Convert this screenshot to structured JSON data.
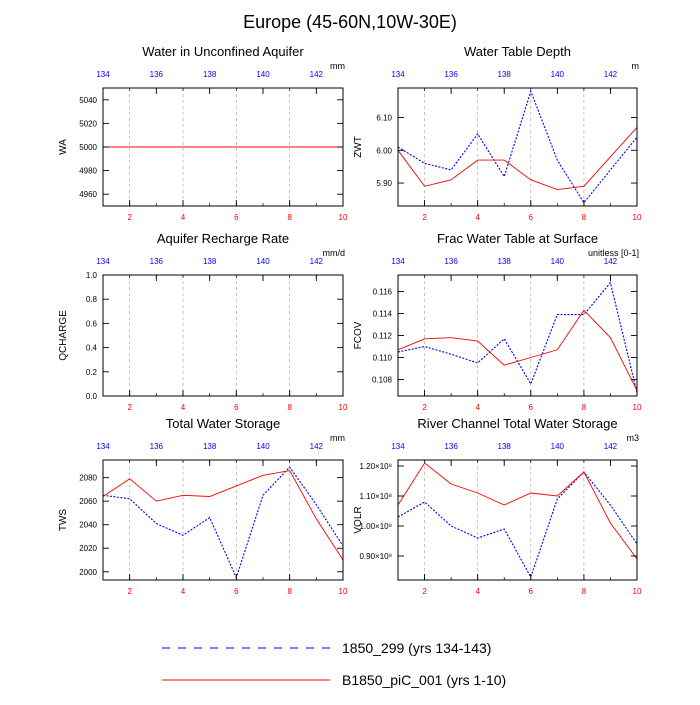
{
  "page": {
    "title": "Europe (45-60N,10W-30E)"
  },
  "colors": {
    "series_1850": "#0000ff",
    "series_b1850": "#ff0000",
    "axis": "#000000",
    "grid": "#aaaaaa"
  },
  "legend": [
    {
      "label": "1850_299 (yrs 134-143)",
      "style": "dashed",
      "color": "#0000ff"
    },
    {
      "label": "B1850_piC_001 (yrs 1-10)",
      "style": "solid",
      "color": "#ff0000"
    }
  ],
  "chart_data": [
    {
      "type": "line",
      "title": "Water in Unconfined Aquifer",
      "ylabel": "WA",
      "units": "mm",
      "x": [
        1,
        2,
        3,
        4,
        5,
        6,
        7,
        8,
        9,
        10
      ],
      "xlim": [
        1,
        10
      ],
      "xticks_bottom": [
        "2",
        "4",
        "6",
        "8",
        "10"
      ],
      "xticks_top": [
        "134",
        "136",
        "138",
        "140",
        "142"
      ],
      "ylim": [
        4950,
        5050
      ],
      "yticks": [
        "4960",
        "4980",
        "5000",
        "5020",
        "5040"
      ],
      "grid": "vertical dashed",
      "series": [
        {
          "name": "1850_299 (yrs 134-143)",
          "values": [
            5000,
            5000,
            5000,
            5000,
            5000,
            5000,
            5000,
            5000,
            5000,
            5000
          ]
        },
        {
          "name": "B1850_piC_001 (yrs 1-10)",
          "values": [
            5000,
            5000,
            5000,
            5000,
            5000,
            5000,
            5000,
            5000,
            5000,
            5000
          ]
        }
      ]
    },
    {
      "type": "line",
      "title": "Water Table Depth",
      "ylabel": "ZWT",
      "units": "m",
      "x": [
        1,
        2,
        3,
        4,
        5,
        6,
        7,
        8,
        9,
        10
      ],
      "xlim": [
        1,
        10
      ],
      "xticks_bottom": [
        "2",
        "4",
        "6",
        "8",
        "10"
      ],
      "xticks_top": [
        "134",
        "136",
        "138",
        "140",
        "142"
      ],
      "ylim": [
        5.83,
        6.19
      ],
      "yticks": [
        "5.90",
        "6.00",
        "6.10"
      ],
      "grid": "vertical dashed",
      "series": [
        {
          "name": "1850_299 (yrs 134-143)",
          "values": [
            6.01,
            5.96,
            5.94,
            6.05,
            5.92,
            6.18,
            5.97,
            5.84,
            5.94,
            6.04
          ]
        },
        {
          "name": "B1850_piC_001 (yrs 1-10)",
          "values": [
            6.0,
            5.89,
            5.91,
            5.97,
            5.97,
            5.91,
            5.88,
            5.89,
            5.98,
            6.07
          ]
        }
      ]
    },
    {
      "type": "line",
      "title": "Aquifer Recharge Rate",
      "ylabel": "QCHARGE",
      "units": "mm/d",
      "x": [
        1,
        2,
        3,
        4,
        5,
        6,
        7,
        8,
        9,
        10
      ],
      "xlim": [
        1,
        10
      ],
      "xticks_bottom": [
        "2",
        "4",
        "6",
        "8",
        "10"
      ],
      "xticks_top": [
        "134",
        "136",
        "138",
        "140",
        "142"
      ],
      "ylim": [
        0,
        1
      ],
      "yticks": [
        "0.0",
        "0.2",
        "0.4",
        "0.6",
        "0.8",
        "1.0"
      ],
      "grid": "vertical dashed",
      "series": []
    },
    {
      "type": "line",
      "title": "Frac Water Table at Surface",
      "ylabel": "FCOV",
      "units": "unitless [0-1]",
      "x": [
        1,
        2,
        3,
        4,
        5,
        6,
        7,
        8,
        9,
        10
      ],
      "xlim": [
        1,
        10
      ],
      "xticks_bottom": [
        "2",
        "4",
        "6",
        "8",
        "10"
      ],
      "xticks_top": [
        "134",
        "136",
        "138",
        "140",
        "142"
      ],
      "ylim": [
        0.1065,
        0.1175
      ],
      "yticks": [
        "0.108",
        "0.110",
        "0.112",
        "0.114",
        "0.116"
      ],
      "grid": "vertical dashed",
      "series": [
        {
          "name": "1850_299 (yrs 134-143)",
          "values": [
            0.1105,
            0.111,
            0.1103,
            0.1095,
            0.1117,
            0.1076,
            0.1139,
            0.1139,
            0.1168,
            0.1068
          ]
        },
        {
          "name": "B1850_piC_001 (yrs 1-10)",
          "values": [
            0.1107,
            0.1117,
            0.1118,
            0.1115,
            0.1093,
            0.11,
            0.1107,
            0.1143,
            0.1118,
            0.107
          ]
        }
      ]
    },
    {
      "type": "line",
      "title": "Total Water Storage",
      "ylabel": "TWS",
      "units": "mm",
      "x": [
        1,
        2,
        3,
        4,
        5,
        6,
        7,
        8,
        9,
        10
      ],
      "xlim": [
        1,
        10
      ],
      "xticks_bottom": [
        "2",
        "4",
        "6",
        "8",
        "10"
      ],
      "xticks_top": [
        "134",
        "136",
        "138",
        "140",
        "142"
      ],
      "ylim": [
        1993,
        2095
      ],
      "yticks": [
        "2000",
        "2020",
        "2040",
        "2060",
        "2080"
      ],
      "grid": "vertical dashed",
      "series": [
        {
          "name": "1850_299 (yrs 134-143)",
          "values": [
            2065,
            2062,
            2041,
            2031,
            2046,
            1995,
            2065,
            2089,
            2057,
            2022
          ]
        },
        {
          "name": "B1850_piC_001 (yrs 1-10)",
          "values": [
            2064,
            2079,
            2060,
            2065,
            2064,
            2073,
            2082,
            2086,
            2045,
            2010
          ]
        }
      ]
    },
    {
      "type": "line",
      "title": "River Channel Total Water Storage",
      "ylabel": "VOLR",
      "units": "m3",
      "x": [
        1,
        2,
        3,
        4,
        5,
        6,
        7,
        8,
        9,
        10
      ],
      "xlim": [
        1,
        10
      ],
      "xticks_bottom": [
        "2",
        "4",
        "6",
        "8",
        "10"
      ],
      "xticks_top": [
        "134",
        "136",
        "138",
        "140",
        "142"
      ],
      "ylim": [
        0.82,
        1.22
      ],
      "yticks": [
        "0.90×10⁸",
        "1.00×10⁸",
        "1.10×10⁸",
        "1.20×10⁸"
      ],
      "y_scale_note": "values ×10⁸",
      "grid": "vertical dashed",
      "series": [
        {
          "name": "1850_299 (yrs 134-143)",
          "values": [
            1.03,
            1.08,
            1.0,
            0.96,
            0.99,
            0.83,
            1.09,
            1.18,
            1.07,
            0.94
          ]
        },
        {
          "name": "B1850_piC_001 (yrs 1-10)",
          "values": [
            1.07,
            1.21,
            1.14,
            1.11,
            1.07,
            1.11,
            1.1,
            1.18,
            1.01,
            0.89
          ]
        }
      ]
    }
  ]
}
